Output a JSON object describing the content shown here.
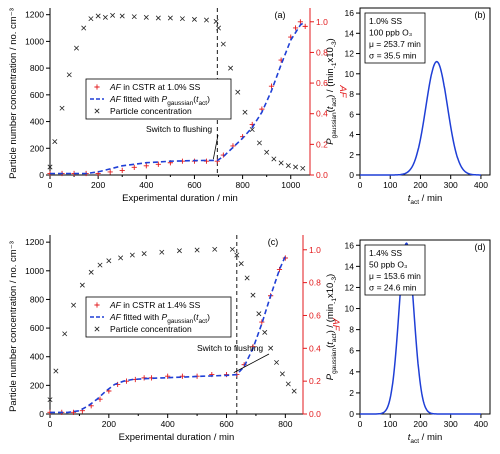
{
  "colors": {
    "af_cstr": "#e31a1c",
    "af_fit": "#1f3fd6",
    "particle": "#222222",
    "pdf_curve": "#1f3fd6"
  },
  "chart_data": [
    {
      "id": "a",
      "type": "scatter",
      "panel_label": "(a)",
      "xlabel": "Experimental duration / min",
      "ylabel_left": "Particle number concentration / no. cm⁻³",
      "ylabel_right": "AF",
      "xlim": [
        0,
        1080
      ],
      "ylim_left": [
        0,
        1250
      ],
      "ylim_right": [
        0,
        1.09
      ],
      "x_ticks": [
        0,
        200,
        400,
        600,
        800,
        1000
      ],
      "y_ticks_left": [
        0,
        200,
        400,
        600,
        800,
        1000,
        1200
      ],
      "y_ticks_right": [
        0.0,
        0.2,
        0.4,
        0.6,
        0.8,
        1.0
      ],
      "legend": [
        "AF in CSTR at 1.0% SS",
        "AF fitted with P_gaussian(t_act)",
        "Particle concentration"
      ],
      "annotation": "Switch to flushing",
      "flush_x": 695,
      "series": [
        {
          "name": "AF in CSTR at 1.0% SS",
          "axis": "right",
          "marker": "plus",
          "x": [
            0,
            50,
            100,
            150,
            200,
            250,
            300,
            350,
            400,
            450,
            500,
            550,
            600,
            650,
            695,
            720,
            760,
            800,
            840,
            880,
            920,
            960,
            1000,
            1020,
            1040,
            1060
          ],
          "y": [
            0.01,
            0.01,
            0.01,
            0.01,
            0.01,
            0.02,
            0.03,
            0.05,
            0.06,
            0.07,
            0.08,
            0.09,
            0.09,
            0.09,
            0.09,
            0.13,
            0.19,
            0.25,
            0.33,
            0.43,
            0.58,
            0.75,
            0.9,
            0.96,
            1.0,
            0.97
          ]
        },
        {
          "name": "AF fitted with P_gaussian(t_act)",
          "axis": "right",
          "marker": "dashed-line",
          "x": [
            0,
            100,
            150,
            200,
            250,
            300,
            350,
            400,
            450,
            500,
            550,
            600,
            650,
            695,
            720,
            760,
            800,
            840,
            880,
            920,
            960,
            1000,
            1040,
            1060
          ],
          "y": [
            0.01,
            0.01,
            0.01,
            0.02,
            0.04,
            0.06,
            0.07,
            0.08,
            0.085,
            0.09,
            0.092,
            0.094,
            0.095,
            0.095,
            0.12,
            0.18,
            0.24,
            0.31,
            0.41,
            0.55,
            0.72,
            0.88,
            0.98,
            1.0
          ]
        },
        {
          "name": "Particle concentration",
          "axis": "left",
          "marker": "cross",
          "x": [
            0,
            20,
            50,
            80,
            110,
            140,
            170,
            200,
            230,
            260,
            300,
            350,
            400,
            450,
            500,
            550,
            600,
            650,
            690,
            700,
            720,
            750,
            780,
            810,
            840,
            870,
            900,
            930,
            960,
            990,
            1020,
            1050
          ],
          "y": [
            60,
            250,
            500,
            750,
            950,
            1100,
            1170,
            1190,
            1180,
            1195,
            1190,
            1185,
            1180,
            1175,
            1175,
            1170,
            1165,
            1160,
            1150,
            1100,
            980,
            800,
            620,
            470,
            340,
            240,
            170,
            120,
            90,
            70,
            60,
            50
          ]
        }
      ]
    },
    {
      "id": "b",
      "type": "line",
      "panel_label": "(b)",
      "xlabel": "t_act / min",
      "ylabel": "P_gaussian(t_act) / (min⁻¹x10⁻³)",
      "xlim": [
        0,
        430
      ],
      "ylim": [
        0,
        16.5
      ],
      "x_ticks": [
        0,
        100,
        200,
        300,
        400
      ],
      "y_ticks": [
        0,
        2,
        4,
        6,
        8,
        10,
        12,
        14,
        16
      ],
      "info": [
        "1.0% SS",
        "100 ppb O₃",
        "μ = 253.7 min",
        "σ = 35.5 min"
      ],
      "mu": 253.7,
      "sigma": 35.5,
      "peak": 11.2
    },
    {
      "id": "c",
      "type": "scatter",
      "panel_label": "(c)",
      "xlabel": "Experimental duration / min",
      "ylabel_left": "Particle number concentration / no. cm⁻³",
      "ylabel_right": "AF",
      "xlim": [
        0,
        860
      ],
      "ylim_left": [
        0,
        1250
      ],
      "ylim_right": [
        0,
        1.09
      ],
      "x_ticks": [
        0,
        200,
        400,
        600,
        800
      ],
      "y_ticks_left": [
        0,
        200,
        400,
        600,
        800,
        1000,
        1200
      ],
      "y_ticks_right": [
        0.0,
        0.2,
        0.4,
        0.6,
        0.8,
        1.0
      ],
      "legend": [
        "AF in CSTR at 1.4% SS",
        "AF fitted with P_gaussian(t_act)",
        "Particle concentration"
      ],
      "annotation": "Switch to flushing",
      "flush_x": 635,
      "series": [
        {
          "name": "AF in CSTR at 1.4% SS",
          "axis": "right",
          "marker": "plus",
          "x": [
            0,
            40,
            80,
            110,
            140,
            170,
            200,
            230,
            260,
            290,
            320,
            345,
            400,
            450,
            500,
            550,
            600,
            635,
            660,
            690,
            720,
            750,
            780,
            800
          ],
          "y": [
            0.01,
            0.01,
            0.01,
            0.02,
            0.05,
            0.09,
            0.14,
            0.18,
            0.2,
            0.21,
            0.22,
            0.22,
            0.23,
            0.23,
            0.23,
            0.24,
            0.24,
            0.24,
            0.3,
            0.41,
            0.56,
            0.72,
            0.88,
            0.95
          ]
        },
        {
          "name": "AF fitted with P_gaussian(t_act)",
          "axis": "right",
          "marker": "dashed-line",
          "x": [
            0,
            60,
            100,
            130,
            160,
            190,
            220,
            250,
            280,
            320,
            380,
            450,
            520,
            600,
            635,
            660,
            690,
            720,
            750,
            780,
            800
          ],
          "y": [
            0.01,
            0.01,
            0.02,
            0.05,
            0.09,
            0.14,
            0.18,
            0.2,
            0.21,
            0.215,
            0.22,
            0.225,
            0.23,
            0.235,
            0.24,
            0.29,
            0.4,
            0.55,
            0.72,
            0.88,
            0.96
          ]
        },
        {
          "name": "Particle concentration",
          "axis": "left",
          "marker": "cross",
          "x": [
            0,
            20,
            50,
            80,
            110,
            140,
            170,
            200,
            240,
            280,
            320,
            380,
            440,
            500,
            560,
            620,
            635,
            650,
            670,
            690,
            710,
            730,
            750,
            770,
            790,
            810,
            830
          ],
          "y": [
            100,
            300,
            560,
            760,
            900,
            990,
            1040,
            1070,
            1090,
            1110,
            1120,
            1130,
            1140,
            1145,
            1150,
            1150,
            1110,
            1050,
            950,
            830,
            700,
            570,
            460,
            360,
            280,
            210,
            160
          ]
        }
      ]
    },
    {
      "id": "d",
      "type": "line",
      "panel_label": "(d)",
      "xlabel": "t_act / min",
      "ylabel": "P_gaussian(t_act) / (min⁻¹x10⁻³)",
      "xlim": [
        0,
        430
      ],
      "ylim": [
        0,
        16.5
      ],
      "x_ticks": [
        0,
        100,
        200,
        300,
        400
      ],
      "y_ticks": [
        0,
        2,
        4,
        6,
        8,
        10,
        12,
        14,
        16
      ],
      "info": [
        "1.4% SS",
        "50 ppb O₃",
        "μ = 153.6 min",
        "σ = 24.6 min"
      ],
      "mu": 153.6,
      "sigma": 24.6,
      "peak": 16.2
    }
  ]
}
